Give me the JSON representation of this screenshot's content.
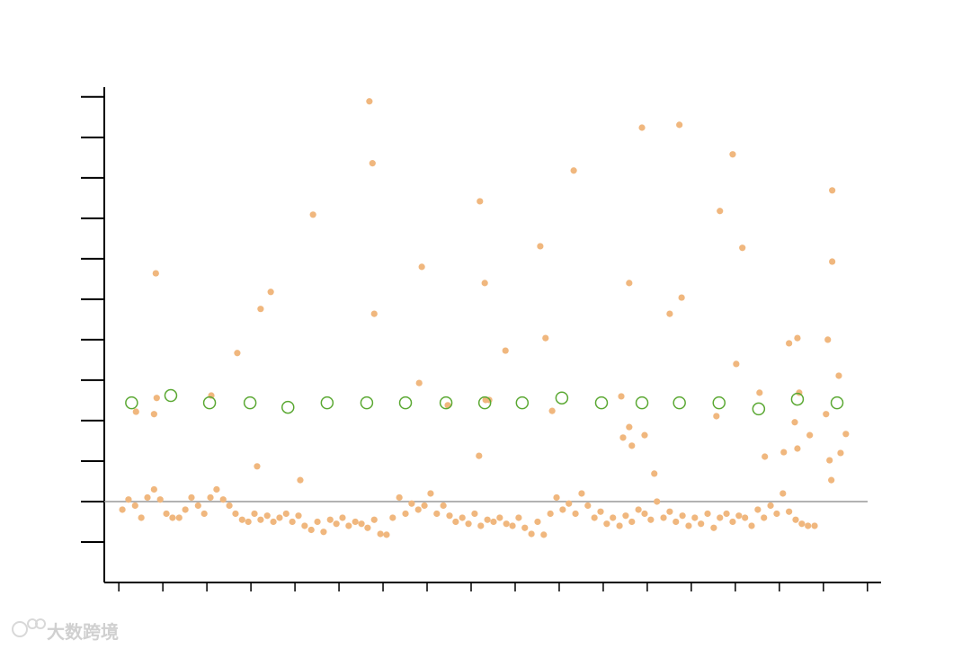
{
  "chart_data": {
    "type": "scatter",
    "xlim": [
      -0.33,
      17.31
    ],
    "xticks": [
      0,
      1,
      2,
      3,
      4,
      5,
      6,
      7,
      8,
      9,
      10,
      11,
      12,
      13,
      14,
      15,
      16,
      17
    ],
    "ylim": [
      -2,
      10.24
    ],
    "yticks": [
      -1,
      0,
      1,
      2,
      3,
      4,
      5,
      6,
      7,
      8,
      9,
      10
    ],
    "grid": false,
    "reference_line": 0,
    "reference_color": "#999999",
    "series": [
      {
        "color": "#f0b77e",
        "marker": "dot",
        "x": [
          0.08,
          0.22,
          0.37,
          0.51,
          0.65,
          0.8,
          0.94,
          1.08,
          1.22,
          1.37,
          1.51,
          1.65,
          1.8,
          1.94,
          2.08,
          2.22,
          2.37,
          2.51,
          2.65,
          2.8,
          2.94,
          3.08,
          3.22,
          3.37,
          3.51,
          3.65,
          3.8,
          3.94,
          4.08,
          4.22,
          4.37,
          4.51,
          4.65,
          4.8,
          4.94,
          5.08,
          5.22,
          5.37,
          5.51,
          5.65,
          5.8,
          5.94,
          6.08,
          6.22,
          6.37,
          6.51,
          6.65,
          6.8,
          6.94,
          7.08,
          7.22,
          7.37,
          7.51,
          7.65,
          7.8,
          7.94,
          8.08,
          8.22,
          8.37,
          8.51,
          8.65,
          8.8,
          8.94,
          9.08,
          9.22,
          9.37,
          9.51,
          9.65,
          9.8,
          9.94,
          10.08,
          10.22,
          10.37,
          10.51,
          10.65,
          10.8,
          10.94,
          11.08,
          11.22,
          11.37,
          11.51,
          11.65,
          11.8,
          11.94,
          12.08,
          12.22,
          12.37,
          12.51,
          12.65,
          12.8,
          12.94,
          13.08,
          13.22,
          13.37,
          13.51,
          13.65,
          13.8,
          13.94,
          14.08,
          14.22,
          14.37,
          14.51,
          14.65,
          14.8,
          14.94,
          15.08,
          15.22,
          15.37,
          15.51,
          15.65,
          15.8,
          0.84,
          0.39,
          0.8,
          0.86,
          2.1,
          2.69,
          3.14,
          3.22,
          3.45,
          4.12,
          4.41,
          5.69,
          5.76,
          5.8,
          6.82,
          6.88,
          7.47,
          8.2,
          8.18,
          8.31,
          8.33,
          8.41,
          8.78,
          9.57,
          9.69,
          9.84,
          10.33,
          11.41,
          11.45,
          11.59,
          11.59,
          11.65,
          11.88,
          11.94,
          12.16,
          12.51,
          12.73,
          12.78,
          13.57,
          13.65,
          13.94,
          14.02,
          14.16,
          14.55,
          14.67,
          15.1,
          15.22,
          15.35,
          15.41,
          15.41,
          15.45,
          15.69,
          16.06,
          16.1,
          16.14,
          16.18,
          16.2,
          16.2,
          16.35,
          16.39,
          16.51
        ],
        "values": [
          -0.2,
          0.05,
          -0.1,
          -0.4,
          0.1,
          0.3,
          0.05,
          -0.3,
          -0.4,
          -0.4,
          -0.2,
          0.1,
          -0.1,
          -0.3,
          0.1,
          0.3,
          0.05,
          -0.1,
          -0.3,
          -0.45,
          -0.5,
          -0.3,
          -0.45,
          -0.35,
          -0.5,
          -0.4,
          -0.3,
          -0.5,
          -0.35,
          -0.6,
          -0.7,
          -0.5,
          -0.75,
          -0.45,
          -0.55,
          -0.4,
          -0.6,
          -0.5,
          -0.55,
          -0.65,
          -0.45,
          -0.8,
          -0.82,
          -0.4,
          0.1,
          -0.3,
          -0.05,
          -0.2,
          -0.1,
          0.2,
          -0.3,
          -0.1,
          -0.35,
          -0.5,
          -0.4,
          -0.55,
          -0.3,
          -0.6,
          -0.45,
          -0.5,
          -0.4,
          -0.55,
          -0.6,
          -0.4,
          -0.65,
          -0.8,
          -0.5,
          -0.82,
          -0.3,
          0.1,
          -0.2,
          -0.05,
          -0.3,
          0.2,
          -0.1,
          -0.4,
          -0.25,
          -0.55,
          -0.4,
          -0.6,
          -0.35,
          -0.5,
          -0.2,
          -0.3,
          -0.45,
          0,
          -0.4,
          -0.25,
          -0.5,
          -0.35,
          -0.6,
          -0.4,
          -0.55,
          -0.3,
          -0.65,
          -0.4,
          -0.3,
          -0.5,
          -0.35,
          -0.4,
          -0.6,
          -0.2,
          -0.4,
          -0.1,
          -0.3,
          0.2,
          -0.25,
          -0.45,
          -0.55,
          -0.6,
          -0.6,
          5.64,
          2.22,
          2.16,
          2.56,
          2.62,
          3.67,
          0.87,
          4.76,
          5.18,
          0.53,
          7.09,
          9.89,
          8.36,
          4.64,
          2.93,
          5.8,
          2.38,
          7.42,
          1.13,
          5.4,
          2.51,
          2.51,
          3.73,
          6.31,
          4.04,
          2.24,
          8.18,
          2.6,
          1.58,
          1.84,
          5.4,
          1.38,
          9.24,
          1.64,
          0.69,
          4.64,
          9.31,
          5.04,
          2.11,
          7.18,
          8.58,
          3.4,
          6.27,
          2.69,
          1.11,
          1.22,
          3.91,
          1.96,
          4.04,
          1.31,
          2.69,
          1.64,
          2.16,
          4.0,
          1.02,
          0.53,
          7.69,
          5.93,
          3.11,
          1.2,
          1.67
        ]
      },
      {
        "color": "#5aa832",
        "marker": "ring",
        "x": [
          0.29,
          1.18,
          2.06,
          2.98,
          3.84,
          4.73,
          5.63,
          6.51,
          7.43,
          8.31,
          9.16,
          10.06,
          10.96,
          11.88,
          12.73,
          13.63,
          14.53,
          15.41,
          16.31
        ],
        "values": [
          2.44,
          2.62,
          2.44,
          2.44,
          2.33,
          2.44,
          2.44,
          2.44,
          2.44,
          2.44,
          2.44,
          2.56,
          2.44,
          2.44,
          2.44,
          2.44,
          2.29,
          2.53,
          2.44
        ]
      }
    ]
  },
  "watermark": "大数跨境"
}
